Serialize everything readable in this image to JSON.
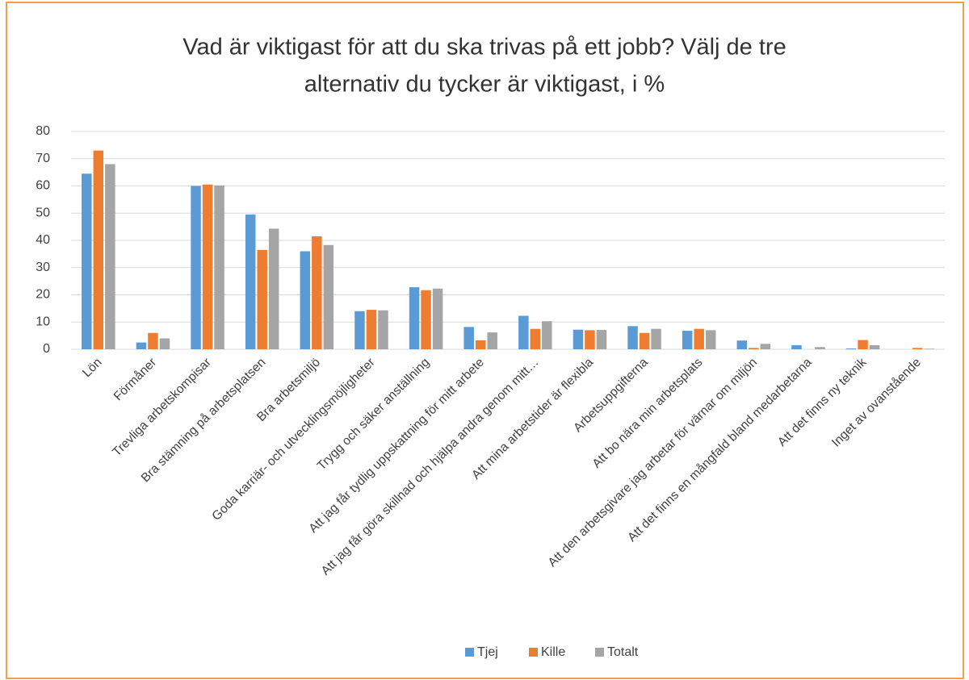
{
  "chart_data": {
    "type": "bar",
    "title": [
      "Vad är viktigast för att du ska trivas på ett jobb? Välj de tre",
      "alternativ du tycker är viktigast, i %"
    ],
    "categories": [
      "Lön",
      "Förmåner",
      "Trevliga arbetskompisar",
      "Bra stämning på arbetsplatsen",
      "Bra arbetsmiljö",
      "Goda karriär- och utvecklingsmöjligheter",
      "Trygg och säker anställning",
      "Att jag får tydlig uppskattning för mitt arbete",
      "Att jag får göra skillnad och hjälpa andra genom mitt…",
      "Att mina arbetstider är flexibla",
      "Arbetsuppgifterna",
      "Att bo nära min arbetsplats",
      "Att den arbetsgivare jag arbetar för värnar om miljön",
      "Att det finns en mångfald bland medarbetarna",
      "Att det finns ny teknik",
      "Inget av ovanstående"
    ],
    "series": [
      {
        "name": "Tjej",
        "color": "#5b9bd5",
        "values": [
          64.5,
          2.5,
          60,
          49.5,
          36,
          14,
          22.8,
          8.2,
          12.3,
          7.2,
          8.5,
          6.8,
          3.2,
          1.5,
          0.3,
          0
        ]
      },
      {
        "name": "Kille",
        "color": "#ed7d31",
        "values": [
          73,
          6,
          60.5,
          36.5,
          41.5,
          14.5,
          21.7,
          3.3,
          7.5,
          7,
          6,
          7.5,
          0.5,
          0,
          3.4,
          0.5
        ]
      },
      {
        "name": "Totalt",
        "color": "#a5a5a5",
        "values": [
          68,
          4,
          60.2,
          44.3,
          38.3,
          14.3,
          22.3,
          6.2,
          10.3,
          7.1,
          7.5,
          7,
          2,
          0.8,
          1.5,
          0.2
        ]
      }
    ],
    "ylim": [
      0,
      80
    ],
    "yticks": [
      0,
      10,
      20,
      30,
      40,
      50,
      60,
      70,
      80
    ],
    "grid": true,
    "legend": "bottom"
  }
}
